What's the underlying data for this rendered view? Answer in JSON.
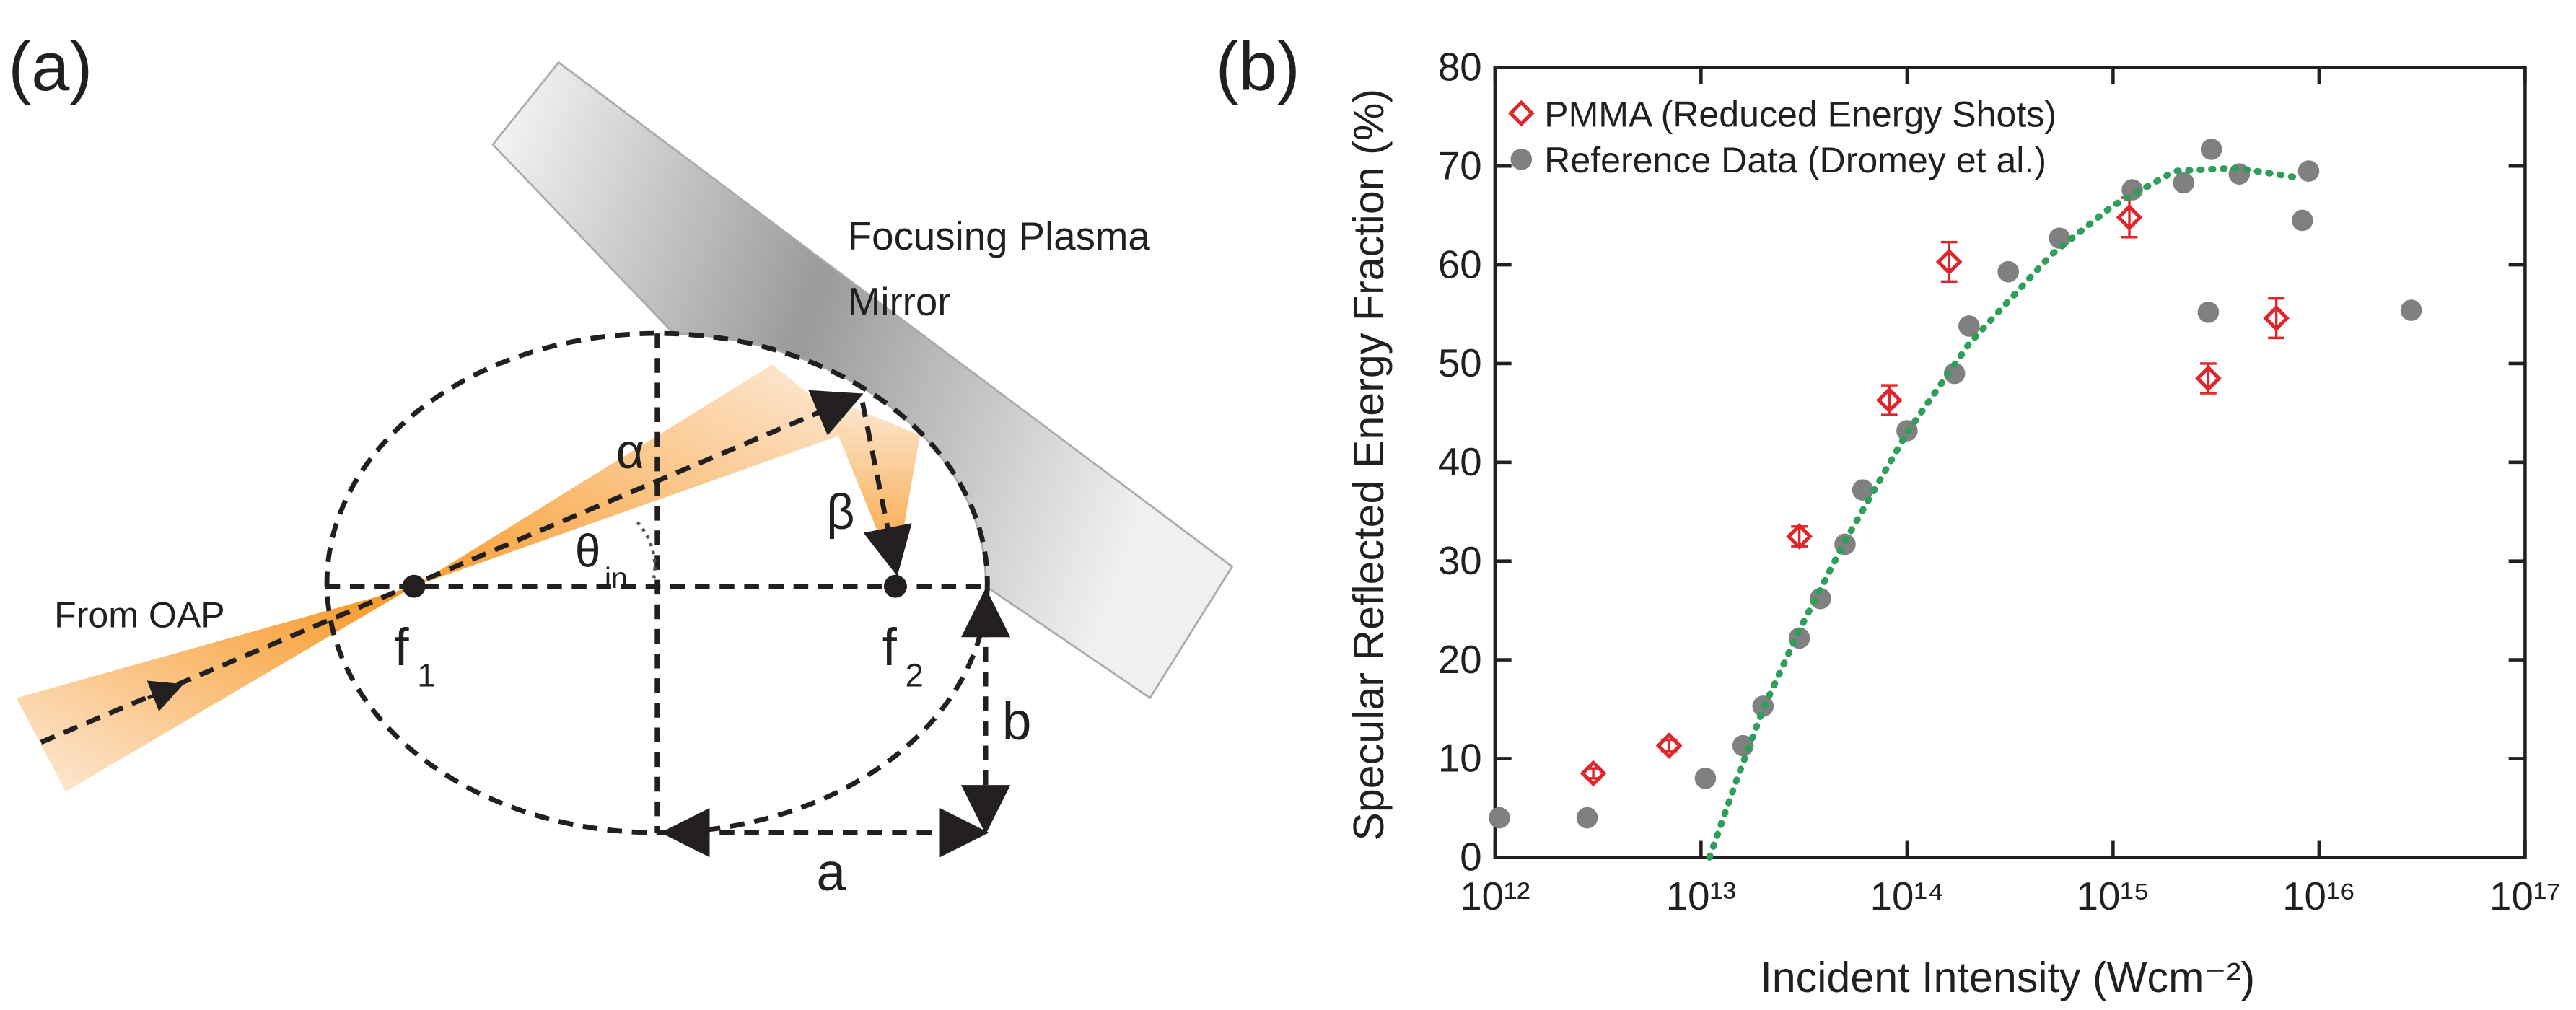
{
  "panel_a": {
    "label": "(a)",
    "mirror_label": [
      "Focusing Plasma",
      "Mirror"
    ],
    "alpha": "α",
    "beta": "β",
    "theta": "θ",
    "theta_sub": "in",
    "source": "From OAP",
    "f1": "f",
    "f1_sub": "1",
    "f2": "f",
    "f2_sub": "2",
    "a": "a",
    "b": "b"
  },
  "chart_data": {
    "type": "scatter",
    "label": "(b)",
    "xlabel": "Incident Intensity (Wcm⁻²)",
    "ylabel": "Specular Reflected Energy Fraction (%)",
    "xscale": "log",
    "xlim": [
      1000000000000.0,
      1e+17
    ],
    "xticks": [
      {
        "value": 1000000000000.0,
        "label": "10¹²"
      },
      {
        "value": 10000000000000.0,
        "label": "10¹³"
      },
      {
        "value": 100000000000000.0,
        "label": "10¹⁴"
      },
      {
        "value": 1000000000000000.0,
        "label": "10¹⁵"
      },
      {
        "value": 1e+16,
        "label": "10¹⁶"
      },
      {
        "value": 1e+17,
        "label": "10¹⁷"
      }
    ],
    "ylim": [
      0,
      80
    ],
    "yticks": [
      0,
      10,
      20,
      30,
      40,
      50,
      60,
      70,
      80
    ],
    "legend": "upper left",
    "series": [
      {
        "name": "PMMA (Reduced Energy Shots)",
        "color": "#e0262a",
        "marker": "diamond",
        "x": [
          3000000000000.0,
          7000000000000.0,
          30000000000000.0,
          82000000000000.0,
          160000000000000.0,
          1200000000000000.0,
          2900000000000000.0,
          6200000000000000.0
        ],
        "values": [
          8.5,
          11.3,
          32.5,
          46.3,
          60.3,
          64.8,
          48.5,
          54.6
        ],
        "errors": [
          0.5,
          0.6,
          1,
          1.5,
          2,
          2,
          1.5,
          2
        ]
      },
      {
        "name": "Reference Data (Dromey et al.)",
        "color": "#808080",
        "marker": "circle",
        "x": [
          1050000000000.0,
          2800000000000.0,
          10500000000000.0,
          16000000000000.0,
          20000000000000.0,
          30000000000000.0,
          38000000000000.0,
          50000000000000.0,
          61000000000000.0,
          100000000000000.0,
          170000000000000.0,
          200000000000000.0,
          310000000000000.0,
          550000000000000.0,
          1240000000000000.0,
          2200000000000000.0,
          3000000000000000.0,
          2900000000000000.0,
          4100000000000000.0,
          8300000000000000.0,
          8900000000000000.0,
          2.8e+16
        ],
        "values": [
          4.0,
          4.0,
          8.0,
          11.3,
          15.3,
          22.2,
          26.2,
          31.7,
          37.2,
          43.2,
          49.0,
          53.8,
          59.3,
          62.7,
          67.6,
          68.3,
          71.7,
          55.2,
          69.2,
          64.5,
          69.5,
          55.4
        ]
      },
      {
        "color": "#2e9e5a",
        "marker": "dotted-line",
        "x": [
          11000000000000.0,
          15000000000000.0,
          20000000000000.0,
          30000000000000.0,
          50000000000000.0,
          100000000000000.0,
          200000000000000.0,
          500000000000000.0,
          1000000000000000.0,
          2000000000000000.0,
          4000000000000000.0,
          8000000000000000.0
        ],
        "values": [
          0,
          8,
          15,
          23,
          32,
          43,
          52,
          61,
          66,
          69.5,
          69.8,
          68.8
        ]
      }
    ]
  }
}
